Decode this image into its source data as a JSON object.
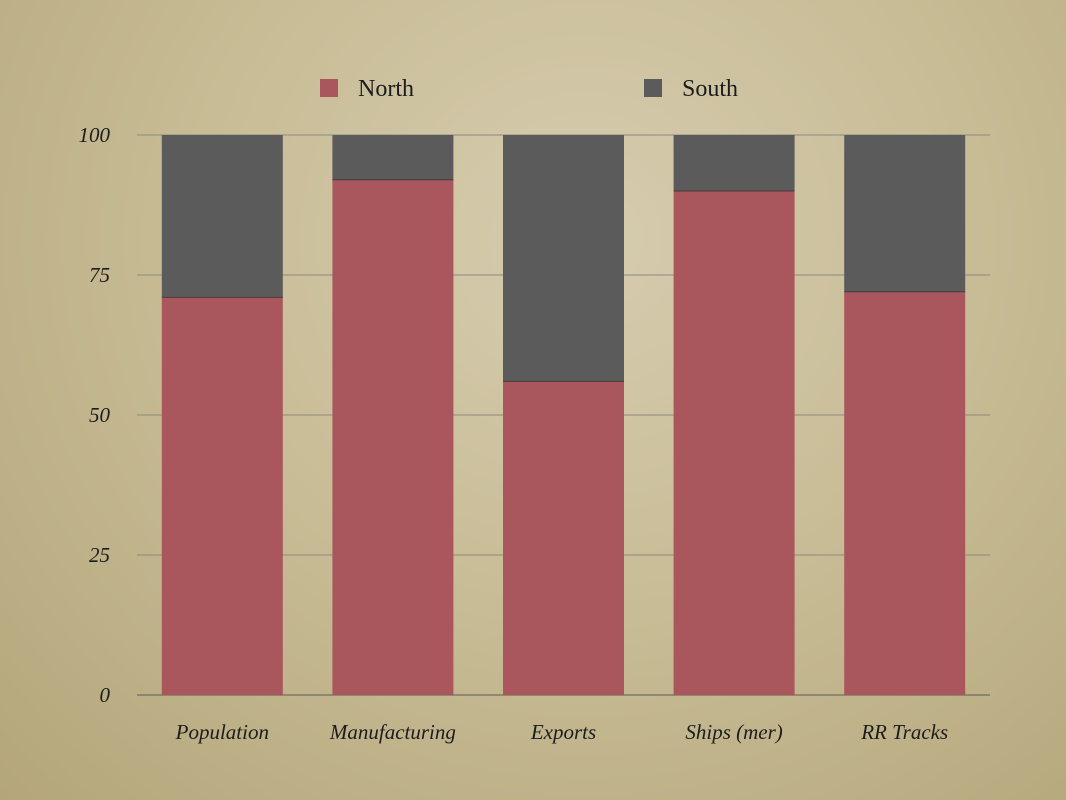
{
  "chart_data": {
    "type": "bar",
    "stacked": true,
    "categories": [
      "Population",
      "Manufacturing",
      "Exports",
      "Ships (mer)",
      "RR Tracks"
    ],
    "series": [
      {
        "name": "North",
        "color": "#a9575c",
        "values": [
          71,
          92,
          56,
          90,
          72
        ]
      },
      {
        "name": "South",
        "color": "#5b5b5b",
        "values": [
          29,
          8,
          44,
          10,
          28
        ]
      }
    ],
    "ylim": [
      0,
      100
    ],
    "yticks": [
      "0",
      "25",
      "50",
      "75",
      "100"
    ],
    "grid": true,
    "legend_position": "top"
  }
}
